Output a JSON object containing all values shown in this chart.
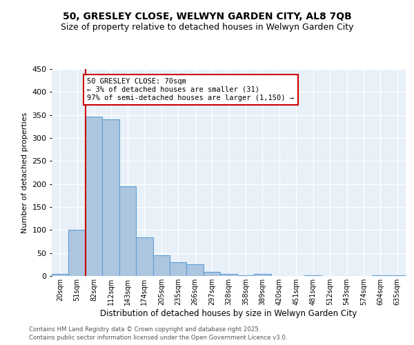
{
  "title1": "50, GRESLEY CLOSE, WELWYN GARDEN CITY, AL8 7QB",
  "title2": "Size of property relative to detached houses in Welwyn Garden City",
  "xlabel": "Distribution of detached houses by size in Welwyn Garden City",
  "ylabel": "Number of detached properties",
  "bin_labels": [
    "20sqm",
    "51sqm",
    "82sqm",
    "112sqm",
    "143sqm",
    "174sqm",
    "205sqm",
    "235sqm",
    "266sqm",
    "297sqm",
    "328sqm",
    "358sqm",
    "389sqm",
    "420sqm",
    "451sqm",
    "481sqm",
    "512sqm",
    "543sqm",
    "574sqm",
    "604sqm",
    "635sqm"
  ],
  "bar_values": [
    5,
    100,
    347,
    340,
    195,
    84,
    45,
    30,
    25,
    9,
    5,
    2,
    5,
    0,
    0,
    2,
    0,
    0,
    0,
    2,
    2
  ],
  "bar_color": "#adc6e0",
  "bar_edge_color": "#5a9fd4",
  "vline_color": "#cc0000",
  "annotation_title": "50 GRESLEY CLOSE: 70sqm",
  "annotation_line1": "← 3% of detached houses are smaller (31)",
  "annotation_line2": "97% of semi-detached houses are larger (1,150) →",
  "annotation_box_color": "#ffffff",
  "annotation_box_edge_color": "#cc0000",
  "ylim": [
    0,
    450
  ],
  "yticks": [
    0,
    50,
    100,
    150,
    200,
    250,
    300,
    350,
    400,
    450
  ],
  "footer1": "Contains HM Land Registry data © Crown copyright and database right 2025.",
  "footer2": "Contains public sector information licensed under the Open Government Licence v3.0.",
  "background_color": "#e8f0f8",
  "title_fontsize": 10,
  "subtitle_fontsize": 9
}
